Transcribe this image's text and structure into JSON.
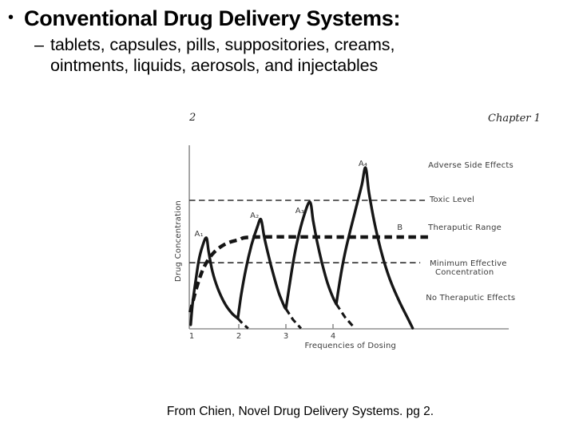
{
  "slide": {
    "title": "Conventional Drug Delivery Systems:",
    "title_bullet": "•",
    "sub_bullet_dash": "–",
    "bullet_lines": [
      "tablets, capsules, pills, suppositories, creams,",
      "ointments, liquids, aerosols, and injectables"
    ],
    "caption": "From Chien, Novel Drug Delivery Systems. pg 2."
  },
  "figure": {
    "page_number": "2",
    "chapter_header": "Chapter 1"
  },
  "colors": {
    "background": "#ffffff",
    "ink": "#161616",
    "axis_gray": "#8f8f8f",
    "figure_label_gray": "#3a3a3a"
  },
  "chart_data": {
    "type": "line",
    "title": "",
    "xlabel": "Frequencies of Dosing",
    "ylabel": "Drug Concentration",
    "x_ticks": [
      1,
      2,
      3,
      4
    ],
    "x_tick_marks": [
      2,
      3,
      4
    ],
    "axis": {
      "x_start": 0.95,
      "x_end": 7.73,
      "y_min": 0,
      "y_max": 100,
      "xlabel_x": 4.37,
      "xlabel_offset": 24,
      "ylabel_x": 0.763,
      "ylabel_y": 47.8,
      "grid": false
    },
    "y_scale_note": "qualitative concentration: 36 = Minimum Effective Concentration, 50 = top of therapeutic range (curve B plateau), 70 = Toxic Level",
    "reference_lines": [
      {
        "label": "Toxic Level",
        "value": 70,
        "x_start": 0.95,
        "x_end": 5.95
      },
      {
        "label": "Minimum Effective Concentration",
        "value": 36,
        "x_start": 0.95,
        "x_end": 5.85
      }
    ],
    "series": [
      {
        "name": "A — conventional repeated dosing (peaks A1–A4)",
        "style": "solid",
        "teeth": [
          {
            "solid": [
              [
                0.98,
                2.2
              ],
              [
                1.02,
                13.9
              ],
              [
                1.09,
                27.0
              ],
              [
                1.15,
                37.0
              ],
              [
                1.22,
                44.3
              ],
              [
                1.31,
                49.6
              ],
              [
                1.36,
                42.2
              ],
              [
                1.44,
                31.3
              ],
              [
                1.56,
                21.7
              ],
              [
                1.71,
                13.5
              ],
              [
                1.86,
                8.3
              ],
              [
                1.98,
                5.7
              ]
            ],
            "tail": [
              [
                1.98,
                5.7
              ],
              [
                2.09,
                2.6
              ],
              [
                2.2,
                0.2
              ]
            ]
          },
          {
            "solid": [
              [
                1.98,
                5.7
              ],
              [
                2.05,
                18.3
              ],
              [
                2.15,
                32.6
              ],
              [
                2.27,
                45.7
              ],
              [
                2.39,
                55.2
              ],
              [
                2.47,
                59.6
              ],
              [
                2.54,
                50.0
              ],
              [
                2.63,
                40.0
              ],
              [
                2.73,
                30.0
              ],
              [
                2.85,
                19.6
              ],
              [
                2.97,
                12.0
              ],
              [
                3.0,
                10.9
              ]
            ],
            "tail": [
              [
                3.0,
                10.9
              ],
              [
                3.15,
                5.0
              ],
              [
                3.32,
                0.2
              ]
            ]
          },
          {
            "solid": [
              [
                3.0,
                10.9
              ],
              [
                3.07,
                22.6
              ],
              [
                3.15,
                35.7
              ],
              [
                3.25,
                48.7
              ],
              [
                3.38,
                61.3
              ],
              [
                3.51,
                69.1
              ],
              [
                3.58,
                58.7
              ],
              [
                3.66,
                47.8
              ],
              [
                3.76,
                36.5
              ],
              [
                3.88,
                25.2
              ],
              [
                4.0,
                17.0
              ],
              [
                4.07,
                13.5
              ]
            ],
            "tail": [
              [
                4.07,
                13.5
              ],
              [
                4.25,
                6.5
              ],
              [
                4.44,
                0.9
              ]
            ]
          },
          {
            "solid": [
              [
                4.07,
                13.5
              ],
              [
                4.15,
                27.0
              ],
              [
                4.25,
                40.9
              ],
              [
                4.37,
                53.9
              ],
              [
                4.49,
                66.1
              ],
              [
                4.61,
                78.3
              ],
              [
                4.69,
                87.8
              ],
              [
                4.76,
                74.8
              ],
              [
                4.85,
                61.7
              ],
              [
                4.95,
                49.6
              ],
              [
                5.07,
                37.8
              ],
              [
                5.22,
                26.1
              ],
              [
                5.41,
                14.8
              ],
              [
                5.58,
                6.1
              ],
              [
                5.69,
                0.4
              ]
            ],
            "tail": []
          }
        ]
      },
      {
        "name": "B — controlled release (constant level)",
        "style": "bold-dashed",
        "points": [
          [
            0.97,
            9.0
          ],
          [
            1.1,
            22.0
          ],
          [
            1.25,
            33.0
          ],
          [
            1.45,
            41.0
          ],
          [
            1.7,
            46.0
          ],
          [
            2.0,
            48.5
          ],
          [
            2.35,
            50.0
          ],
          [
            4.2,
            50.0
          ],
          [
            6.03,
            50.0
          ]
        ]
      }
    ],
    "annotations": [
      {
        "text": "A₁",
        "x": 1.06,
        "y": 50.5
      },
      {
        "text": "A₂",
        "x": 2.24,
        "y": 60.4
      },
      {
        "text": "A₃",
        "x": 3.2,
        "y": 63.0
      },
      {
        "text": "A₄",
        "x": 4.54,
        "y": 88.7
      },
      {
        "text": "B",
        "x": 5.36,
        "y": 53.9
      },
      {
        "text": "Adverse Side Effects",
        "x": 6.02,
        "y": 87.8
      },
      {
        "text": "Toxic Level",
        "x": 6.05,
        "y": 69.1
      },
      {
        "text": "Theraputic Range",
        "x": 6.02,
        "y": 53.9
      },
      {
        "text": "Minimum Effective",
        "x": 6.05,
        "y": 34.3
      },
      {
        "text": "Concentration",
        "x": 6.17,
        "y": 29.6
      },
      {
        "text": "No Theraputic Effects",
        "x": 5.97,
        "y": 15.7
      }
    ],
    "legend_position": "none"
  }
}
